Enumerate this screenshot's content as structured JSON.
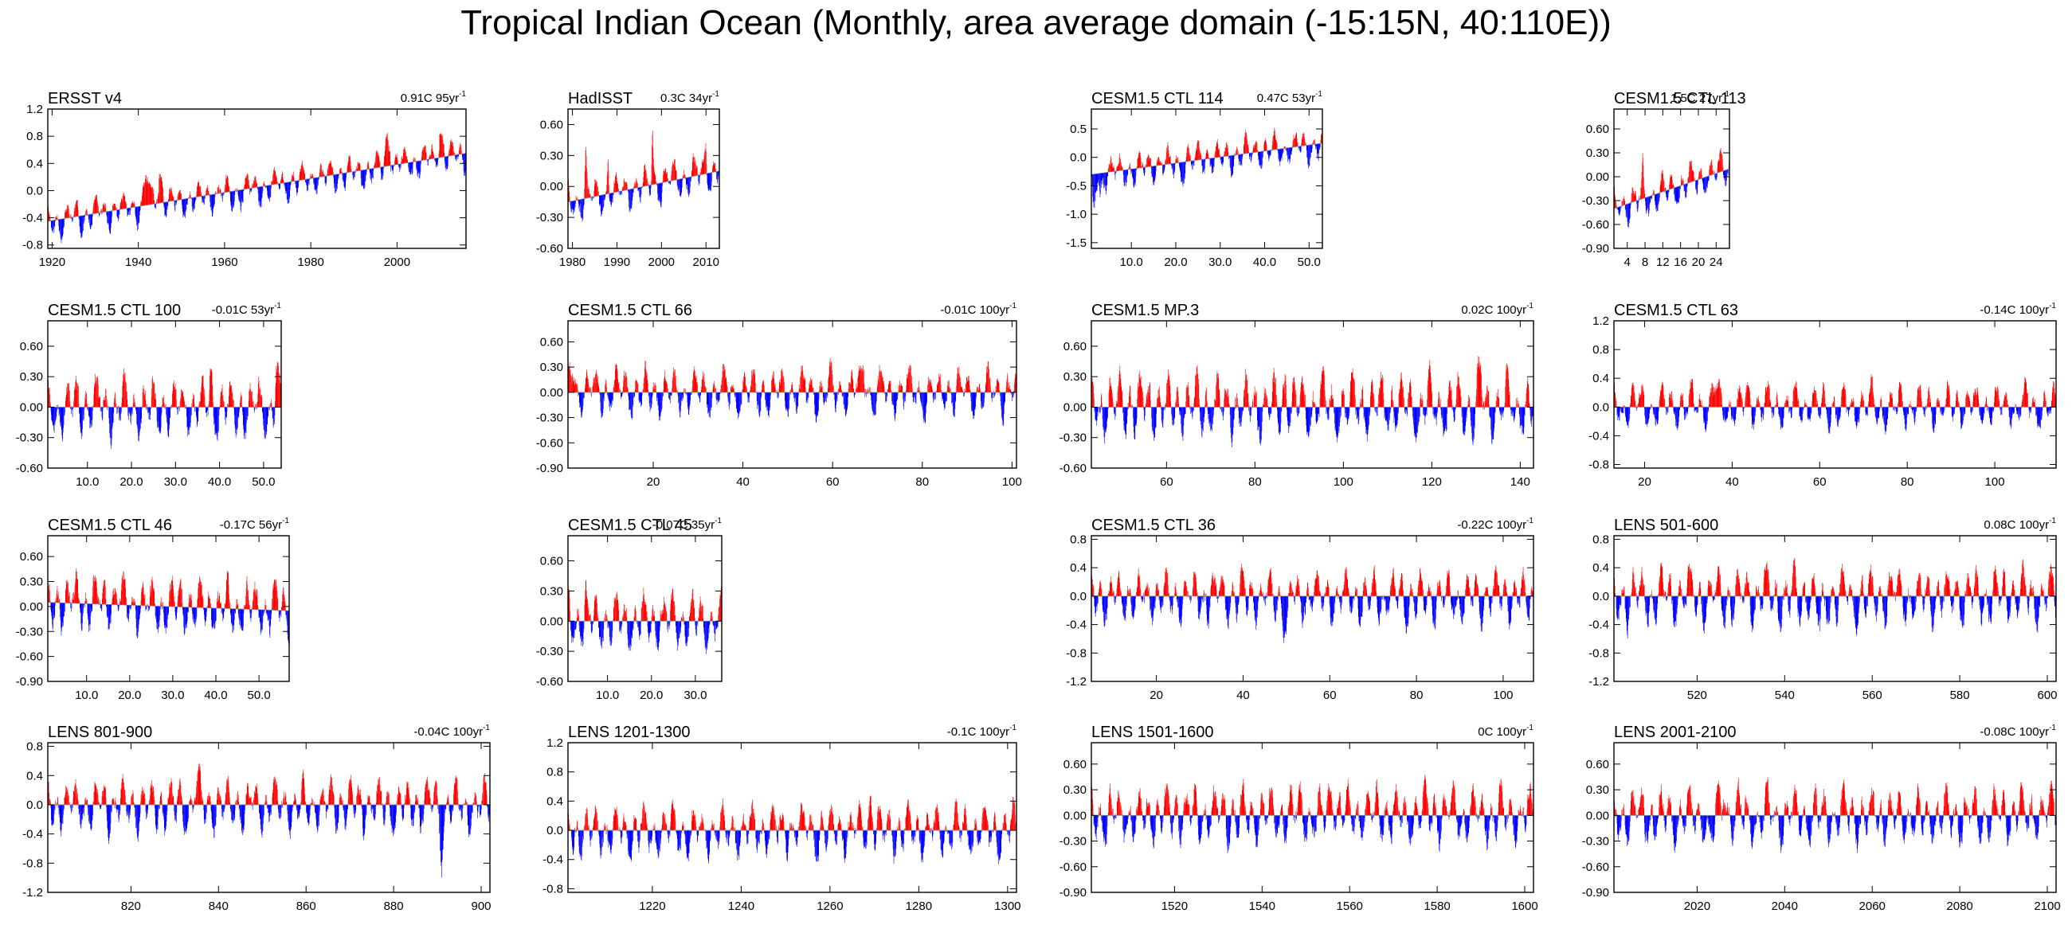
{
  "page_title": "Tropical Indian Ocean (Monthly, area average domain (-15:15N, 40:110E))",
  "colors": {
    "positive": "#ff0000",
    "negative": "#0000ff",
    "axis": "#000000",
    "zero_line": "#000000"
  },
  "chart_data": [
    {
      "type": "bar",
      "title": "ERSST v4",
      "trend": "0.91C 95yr",
      "trend_unit_exp": "-1",
      "xlim": [
        1919,
        2016
      ],
      "ylim": [
        -0.85,
        1.2
      ],
      "yticks": [
        -0.8,
        -0.4,
        0.0,
        0.4,
        0.8,
        1.2
      ],
      "ytick_labels": [
        "-0.8",
        "-0.4",
        "0.0",
        "0.4",
        "0.8",
        "1.2"
      ],
      "xticks": [
        1920,
        1940,
        1960,
        1980,
        2000
      ],
      "xtick_labels": [
        "1920",
        "1940",
        "1960",
        "1980",
        "2000"
      ],
      "trend_line": [
        -0.45,
        0.55
      ],
      "spikes_pos": [
        [
          1942,
          0.45
        ],
        [
          1945,
          0.5
        ],
        [
          1998,
          0.6
        ],
        [
          2010,
          0.5
        ]
      ],
      "amp_pos": 0.22,
      "amp_neg": 0.3,
      "seed": 11
    },
    {
      "type": "bar",
      "title": "HadISST",
      "trend": "0.3C 34yr",
      "trend_unit_exp": "-1",
      "xlim": [
        1979,
        2013
      ],
      "ylim": [
        -0.6,
        0.75
      ],
      "yticks": [
        -0.6,
        -0.3,
        0.0,
        0.3,
        0.6
      ],
      "ytick_labels": [
        "-0.60",
        "-0.30",
        "0.00",
        "0.30",
        "0.60"
      ],
      "xticks": [
        1980,
        1990,
        2000,
        2010
      ],
      "xtick_labels": [
        "1980",
        "1990",
        "2000",
        "2010"
      ],
      "trend_line": [
        -0.15,
        0.15
      ],
      "spikes_pos": [
        [
          1983,
          0.5
        ],
        [
          1988,
          0.45
        ],
        [
          1998,
          0.55
        ],
        [
          2010,
          0.3
        ]
      ],
      "amp_pos": 0.2,
      "amp_neg": 0.2,
      "seed": 23
    },
    {
      "type": "bar",
      "title": "CESM1.5 CTL 114",
      "trend": "0.47C 53yr",
      "trend_unit_exp": "-1",
      "xlim": [
        1,
        53
      ],
      "ylim": [
        -1.6,
        0.85
      ],
      "yticks": [
        -1.5,
        -1.0,
        -0.5,
        0.0,
        0.5
      ],
      "ytick_labels": [
        "-1.5",
        "-1.0",
        "-0.5",
        "0.0",
        "0.5"
      ],
      "xticks": [
        10,
        20,
        30,
        40,
        50
      ],
      "xtick_labels": [
        "10.0",
        "20.0",
        "30.0",
        "40.0",
        "50.0"
      ],
      "trend_line": [
        -0.3,
        0.25
      ],
      "spikes_neg": [
        [
          1.5,
          -0.8
        ],
        [
          3,
          -0.5
        ]
      ],
      "amp_pos": 0.3,
      "amp_neg": 0.35,
      "seed": 37
    },
    {
      "type": "bar",
      "title": "CESM1.5 CTL 113",
      "trend": "1.5C 27yr",
      "trend_unit_exp": "-1",
      "xlim": [
        1,
        27
      ],
      "ylim": [
        -0.9,
        0.85
      ],
      "yticks": [
        -0.9,
        -0.6,
        -0.3,
        0.0,
        0.3,
        0.6
      ],
      "ytick_labels": [
        "-0.90",
        "-0.60",
        "-0.30",
        "0.00",
        "0.30",
        "0.60"
      ],
      "xticks": [
        4,
        8,
        12,
        16,
        20,
        24
      ],
      "xtick_labels": [
        "4",
        "8",
        "12",
        "16",
        "20",
        "24"
      ],
      "trend_line": [
        -0.4,
        0.1
      ],
      "spikes_pos": [
        [
          7.5,
          0.4
        ]
      ],
      "amp_pos": 0.25,
      "amp_neg": 0.25,
      "seed": 41
    },
    {
      "type": "bar",
      "title": "CESM1.5 CTL 100",
      "trend": "-0.01C 53yr",
      "trend_unit_exp": "-1",
      "xlim": [
        1,
        54
      ],
      "ylim": [
        -0.6,
        0.85
      ],
      "yticks": [
        -0.6,
        -0.3,
        0.0,
        0.3,
        0.6
      ],
      "ytick_labels": [
        "-0.60",
        "-0.30",
        "0.00",
        "0.30",
        "0.60"
      ],
      "xticks": [
        10,
        20,
        30,
        40,
        50
      ],
      "xtick_labels": [
        "10.0",
        "20.0",
        "30.0",
        "40.0",
        "50.0"
      ],
      "trend_line": [
        0,
        0
      ],
      "spikes_pos": [
        [
          38,
          0.35
        ],
        [
          53,
          0.4
        ]
      ],
      "amp_pos": 0.3,
      "amp_neg": 0.3,
      "seed": 53
    },
    {
      "type": "bar",
      "title": "CESM1.5 CTL 66",
      "trend": "-0.01C 100yr",
      "trend_unit_exp": "-1",
      "xlim": [
        1,
        101
      ],
      "ylim": [
        -0.9,
        0.85
      ],
      "yticks": [
        -0.9,
        -0.6,
        -0.3,
        0.0,
        0.3,
        0.6
      ],
      "ytick_labels": [
        "-0.90",
        "-0.60",
        "-0.30",
        "0.00",
        "0.30",
        "0.60"
      ],
      "xticks": [
        20,
        40,
        60,
        80,
        100
      ],
      "xtick_labels": [
        "20",
        "40",
        "60",
        "80",
        "100"
      ],
      "trend_line": [
        0,
        0
      ],
      "spikes_pos": [
        [
          2,
          0.35
        ],
        [
          67,
          0.35
        ]
      ],
      "amp_pos": 0.3,
      "amp_neg": 0.3,
      "seed": 61
    },
    {
      "type": "bar",
      "title": "CESM1.5 MP.3",
      "trend": "0.02C 100yr",
      "trend_unit_exp": "-1",
      "xlim": [
        43,
        143
      ],
      "ylim": [
        -0.6,
        0.85
      ],
      "yticks": [
        -0.6,
        -0.3,
        0.0,
        0.3,
        0.6
      ],
      "ytick_labels": [
        "-0.60",
        "-0.30",
        "0.00",
        "0.30",
        "0.60"
      ],
      "xticks": [
        60,
        80,
        100,
        120,
        140
      ],
      "xtick_labels": [
        "60",
        "80",
        "100",
        "120",
        "140"
      ],
      "trend_line": [
        0,
        0
      ],
      "spikes_pos": [
        [
          87,
          0.3
        ],
        [
          131,
          0.25
        ]
      ],
      "amp_pos": 0.35,
      "amp_neg": 0.3,
      "seed": 73
    },
    {
      "type": "bar",
      "title": "CESM1.5 CTL 63",
      "trend": "-0.14C 100yr",
      "trend_unit_exp": "-1",
      "xlim": [
        13,
        114
      ],
      "ylim": [
        -0.85,
        1.2
      ],
      "yticks": [
        -0.8,
        -0.4,
        0.0,
        0.4,
        0.8,
        1.2
      ],
      "ytick_labels": [
        "-0.8",
        "-0.4",
        "0.0",
        "0.4",
        "0.8",
        "1.2"
      ],
      "xticks": [
        20,
        40,
        60,
        80,
        100
      ],
      "xtick_labels": [
        "20",
        "40",
        "60",
        "80",
        "100"
      ],
      "trend_line": [
        0,
        0
      ],
      "spikes_pos": [
        [
          36,
          0.3
        ]
      ],
      "amp_pos": 0.35,
      "amp_neg": 0.3,
      "seed": 83
    },
    {
      "type": "bar",
      "title": "CESM1.5 CTL 46",
      "trend": "-0.17C 56yr",
      "trend_unit_exp": "-1",
      "xlim": [
        1,
        57
      ],
      "ylim": [
        -0.9,
        0.85
      ],
      "yticks": [
        -0.9,
        -0.6,
        -0.3,
        0.0,
        0.3,
        0.6
      ],
      "ytick_labels": [
        "-0.90",
        "-0.60",
        "-0.30",
        "0.00",
        "0.30",
        "0.60"
      ],
      "xticks": [
        10,
        20,
        30,
        40,
        50
      ],
      "xtick_labels": [
        "10.0",
        "20.0",
        "30.0",
        "40.0",
        "50.0"
      ],
      "trend_line": [
        0.05,
        -0.05
      ],
      "amp_pos": 0.35,
      "amp_neg": 0.35,
      "seed": 97
    },
    {
      "type": "bar",
      "title": "CESM1.5 CTL 45",
      "trend": "-0.07C 35yr",
      "trend_unit_exp": "-1",
      "xlim": [
        1,
        36
      ],
      "ylim": [
        -0.6,
        0.85
      ],
      "yticks": [
        -0.6,
        -0.3,
        0.0,
        0.3,
        0.6
      ],
      "ytick_labels": [
        "-0.60",
        "-0.30",
        "0.00",
        "0.30",
        "0.60"
      ],
      "xticks": [
        10,
        20,
        30
      ],
      "xtick_labels": [
        "10.0",
        "20.0",
        "30.0"
      ],
      "trend_line": [
        0,
        0
      ],
      "spikes_pos": [
        [
          5,
          0.35
        ],
        [
          22,
          0.3
        ]
      ],
      "amp_pos": 0.3,
      "amp_neg": 0.3,
      "seed": 101
    },
    {
      "type": "bar",
      "title": "CESM1.5 CTL 36",
      "trend": "-0.22C 100yr",
      "trend_unit_exp": "-1",
      "xlim": [
        5,
        107
      ],
      "ylim": [
        -1.2,
        0.85
      ],
      "yticks": [
        -1.2,
        -0.8,
        -0.4,
        0.0,
        0.4,
        0.8
      ],
      "ytick_labels": [
        "-1.2",
        "-0.8",
        "-0.4",
        "0.0",
        "0.4",
        "0.8"
      ],
      "xticks": [
        20,
        40,
        60,
        80,
        100
      ],
      "xtick_labels": [
        "20",
        "40",
        "60",
        "80",
        "100"
      ],
      "trend_line": [
        0,
        0
      ],
      "spikes_neg": [
        [
          50,
          -0.5
        ]
      ],
      "amp_pos": 0.35,
      "amp_neg": 0.4,
      "seed": 113
    },
    {
      "type": "bar",
      "title": "LENS 501-600",
      "trend": "0.08C 100yr",
      "trend_unit_exp": "-1",
      "xlim": [
        501,
        602
      ],
      "ylim": [
        -1.2,
        0.85
      ],
      "yticks": [
        -1.2,
        -0.8,
        -0.4,
        0.0,
        0.4,
        0.8
      ],
      "ytick_labels": [
        "-1.2",
        "-0.8",
        "-0.4",
        "0.0",
        "0.4",
        "0.8"
      ],
      "xticks": [
        520,
        540,
        560,
        580,
        600
      ],
      "xtick_labels": [
        "520",
        "540",
        "560",
        "580",
        "600"
      ],
      "trend_line": [
        0,
        0
      ],
      "spikes_neg": [
        [
          548,
          -0.6
        ]
      ],
      "amp_pos": 0.4,
      "amp_neg": 0.45,
      "seed": 127
    },
    {
      "type": "bar",
      "title": "LENS 801-900",
      "trend": "-0.04C 100yr",
      "trend_unit_exp": "-1",
      "xlim": [
        801,
        902
      ],
      "ylim": [
        -1.2,
        0.85
      ],
      "yticks": [
        -1.2,
        -0.8,
        -0.4,
        0.0,
        0.4,
        0.8
      ],
      "ytick_labels": [
        "-1.2",
        "-0.8",
        "-0.4",
        "0.0",
        "0.4",
        "0.8"
      ],
      "xticks": [
        820,
        840,
        860,
        880,
        900
      ],
      "xtick_labels": [
        "820",
        "840",
        "860",
        "880",
        "900"
      ],
      "trend_line": [
        0,
        0
      ],
      "spikes_pos": [
        [
          835,
          0.4
        ]
      ],
      "spikes_neg": [
        [
          891,
          -0.5
        ]
      ],
      "amp_pos": 0.35,
      "amp_neg": 0.4,
      "seed": 131
    },
    {
      "type": "bar",
      "title": "LENS 1201-1300",
      "trend": "-0.1C 100yr",
      "trend_unit_exp": "-1",
      "xlim": [
        1201,
        1302
      ],
      "ylim": [
        -0.85,
        1.2
      ],
      "yticks": [
        -0.8,
        -0.4,
        0.0,
        0.4,
        0.8,
        1.2
      ],
      "ytick_labels": [
        "-0.8",
        "-0.4",
        "0.0",
        "0.4",
        "0.8",
        "1.2"
      ],
      "xticks": [
        1220,
        1240,
        1260,
        1280,
        1300
      ],
      "xtick_labels": [
        "1220",
        "1240",
        "1260",
        "1280",
        "1300"
      ],
      "trend_line": [
        0,
        0
      ],
      "spikes_pos": [
        [
          1269,
          0.4
        ]
      ],
      "amp_pos": 0.35,
      "amp_neg": 0.4,
      "seed": 139
    },
    {
      "type": "bar",
      "title": "LENS 1501-1600",
      "trend": "0C 100yr",
      "trend_unit_exp": "-1",
      "xlim": [
        1501,
        1602
      ],
      "ylim": [
        -0.9,
        0.85
      ],
      "yticks": [
        -0.9,
        -0.6,
        -0.3,
        0.0,
        0.3,
        0.6
      ],
      "ytick_labels": [
        "-0.90",
        "-0.60",
        "-0.30",
        "0.00",
        "0.30",
        "0.60"
      ],
      "xticks": [
        1520,
        1540,
        1560,
        1580,
        1600
      ],
      "xtick_labels": [
        "1520",
        "1540",
        "1560",
        "1580",
        "1600"
      ],
      "trend_line": [
        0,
        0
      ],
      "spikes_pos": [
        [
          1556,
          0.35
        ]
      ],
      "amp_pos": 0.35,
      "amp_neg": 0.35,
      "seed": 149
    },
    {
      "type": "bar",
      "title": "LENS 2001-2100",
      "trend": "-0.08C 100yr",
      "trend_unit_exp": "-1",
      "xlim": [
        2001,
        2102
      ],
      "ylim": [
        -0.9,
        0.85
      ],
      "yticks": [
        -0.9,
        -0.6,
        -0.3,
        0.0,
        0.3,
        0.6
      ],
      "ytick_labels": [
        "-0.90",
        "-0.60",
        "-0.30",
        "0.00",
        "0.30",
        "0.60"
      ],
      "xticks": [
        2020,
        2040,
        2060,
        2080,
        2100
      ],
      "xtick_labels": [
        "2020",
        "2040",
        "2060",
        "2080",
        "2100"
      ],
      "trend_line": [
        0,
        0
      ],
      "spikes_pos": [
        [
          2026,
          0.4
        ]
      ],
      "spikes_neg": [
        [
          2023,
          -0.4
        ]
      ],
      "amp_pos": 0.35,
      "amp_neg": 0.35,
      "seed": 157
    }
  ]
}
